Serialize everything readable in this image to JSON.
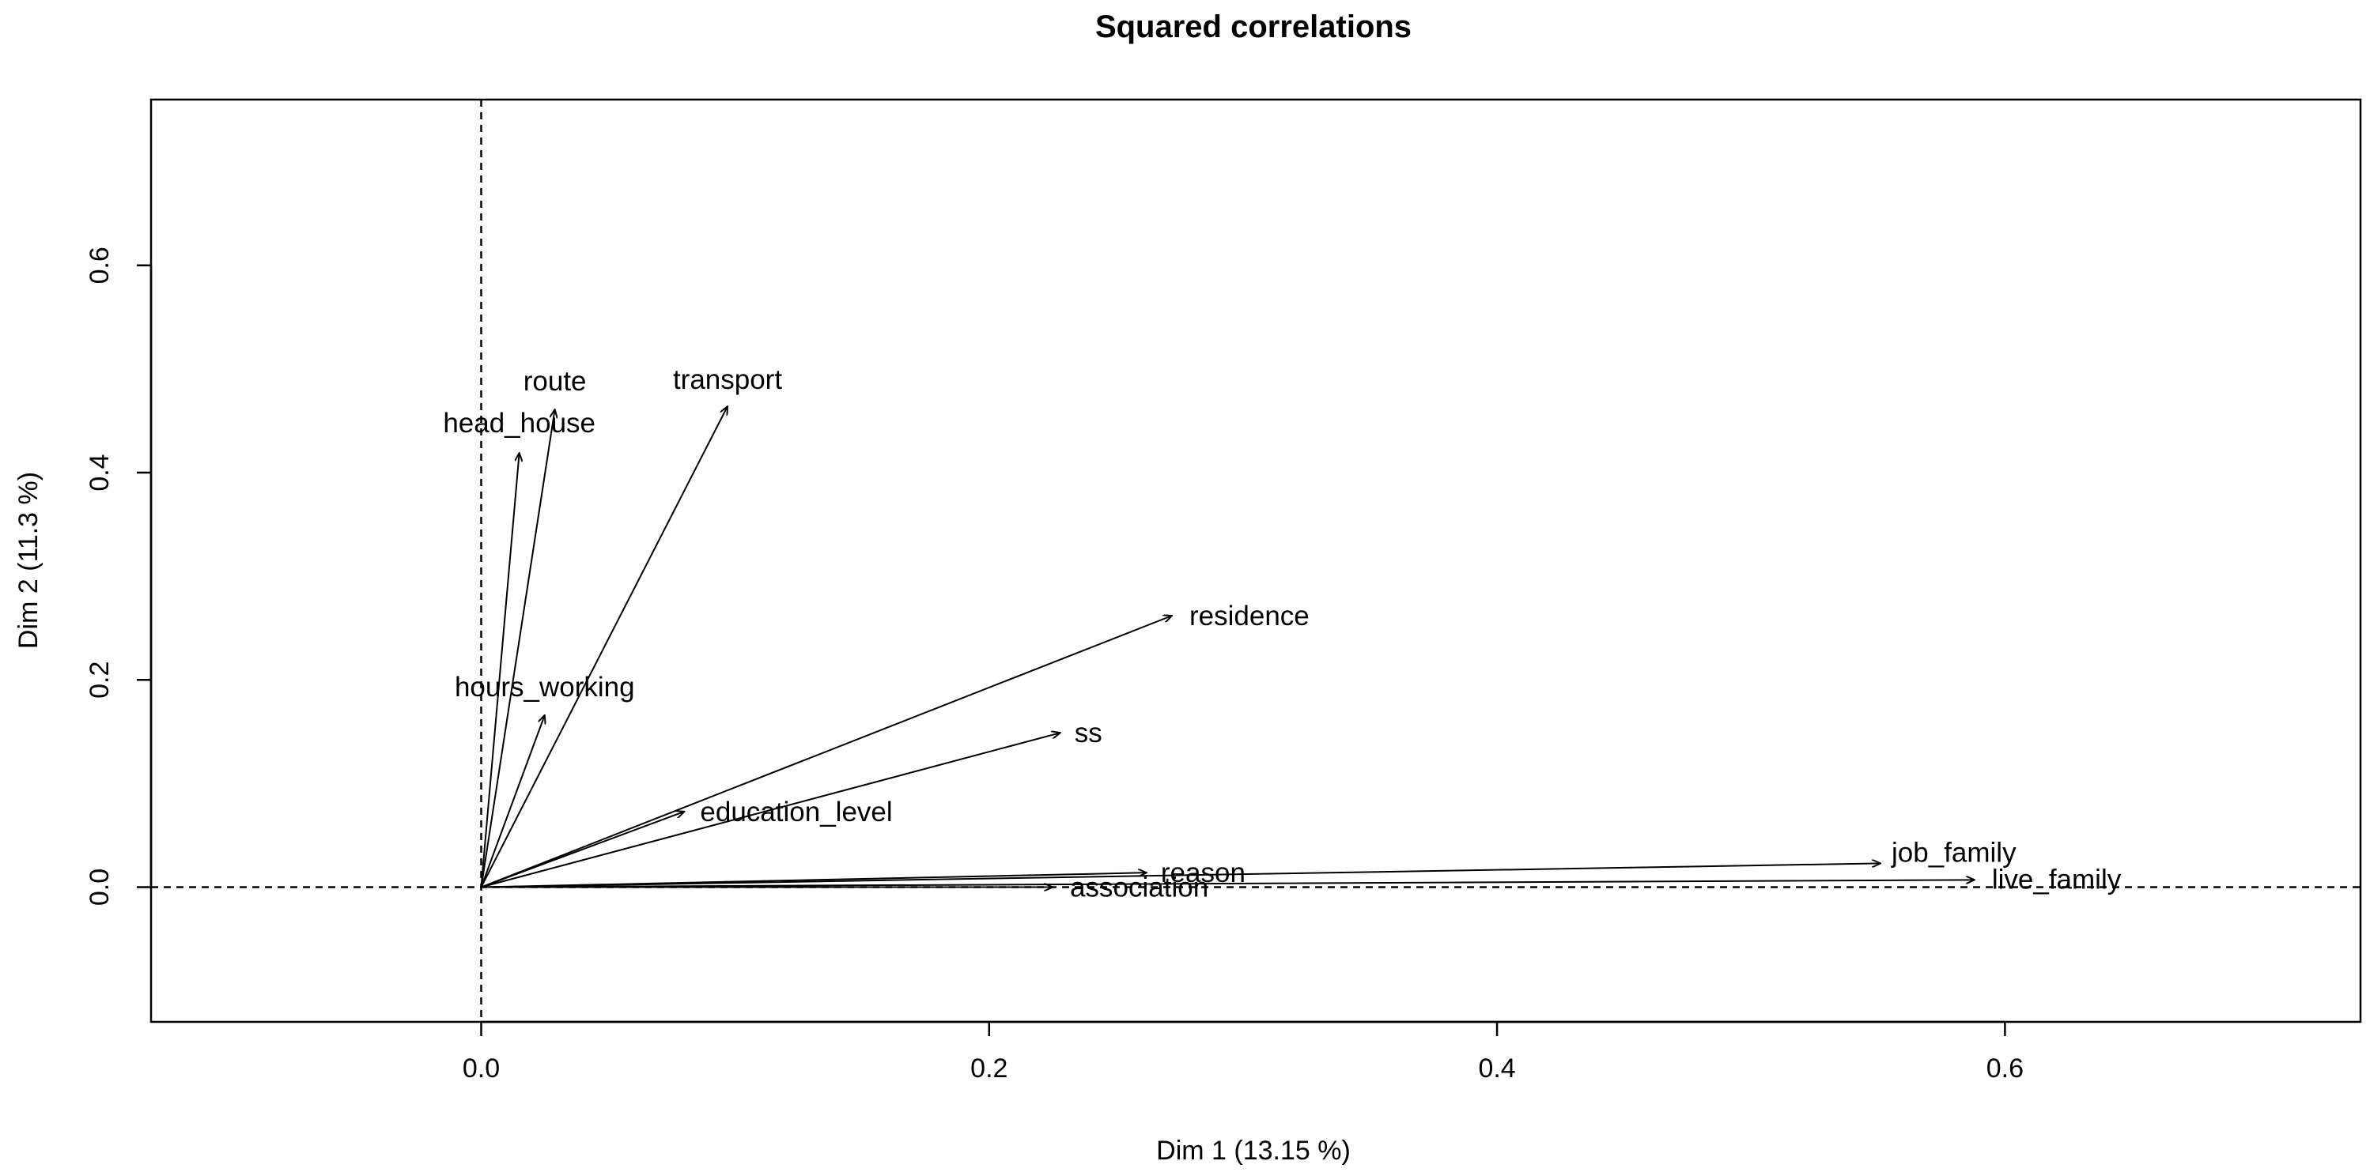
{
  "chart_data": {
    "type": "vector-plot",
    "title": "Squared correlations",
    "xlabel": "Dim 1 (13.15 %)",
    "ylabel": "Dim 2 (11.3 %)",
    "xlim": [
      -0.13,
      0.74
    ],
    "ylim": [
      -0.13,
      0.76
    ],
    "xticks": [
      {
        "value": 0.0,
        "label": "0.0"
      },
      {
        "value": 0.2,
        "label": "0.2"
      },
      {
        "value": 0.4,
        "label": "0.4"
      },
      {
        "value": 0.6,
        "label": "0.6"
      }
    ],
    "yticks": [
      {
        "value": 0.0,
        "label": "0.0"
      },
      {
        "value": 0.2,
        "label": "0.2"
      },
      {
        "value": 0.4,
        "label": "0.4"
      },
      {
        "value": 0.6,
        "label": "0.6"
      }
    ],
    "reference_lines": {
      "x": 0,
      "y": 0
    },
    "vectors": [
      {
        "name": "route",
        "x": 0.029,
        "y": 0.461
      },
      {
        "name": "head_house",
        "x": 0.015,
        "y": 0.419
      },
      {
        "name": "transport",
        "x": 0.097,
        "y": 0.464
      },
      {
        "name": "residence",
        "x": 0.272,
        "y": 0.262
      },
      {
        "name": "hours_working",
        "x": 0.025,
        "y": 0.166
      },
      {
        "name": "ss",
        "x": 0.228,
        "y": 0.149
      },
      {
        "name": "education_level",
        "x": 0.08,
        "y": 0.073
      },
      {
        "name": "reason",
        "x": 0.262,
        "y": 0.014
      },
      {
        "name": "association",
        "x": 0.225,
        "y": 0.0
      },
      {
        "name": "job_family",
        "x": 0.551,
        "y": 0.023
      },
      {
        "name": "live_family",
        "x": 0.588,
        "y": 0.007
      }
    ]
  }
}
